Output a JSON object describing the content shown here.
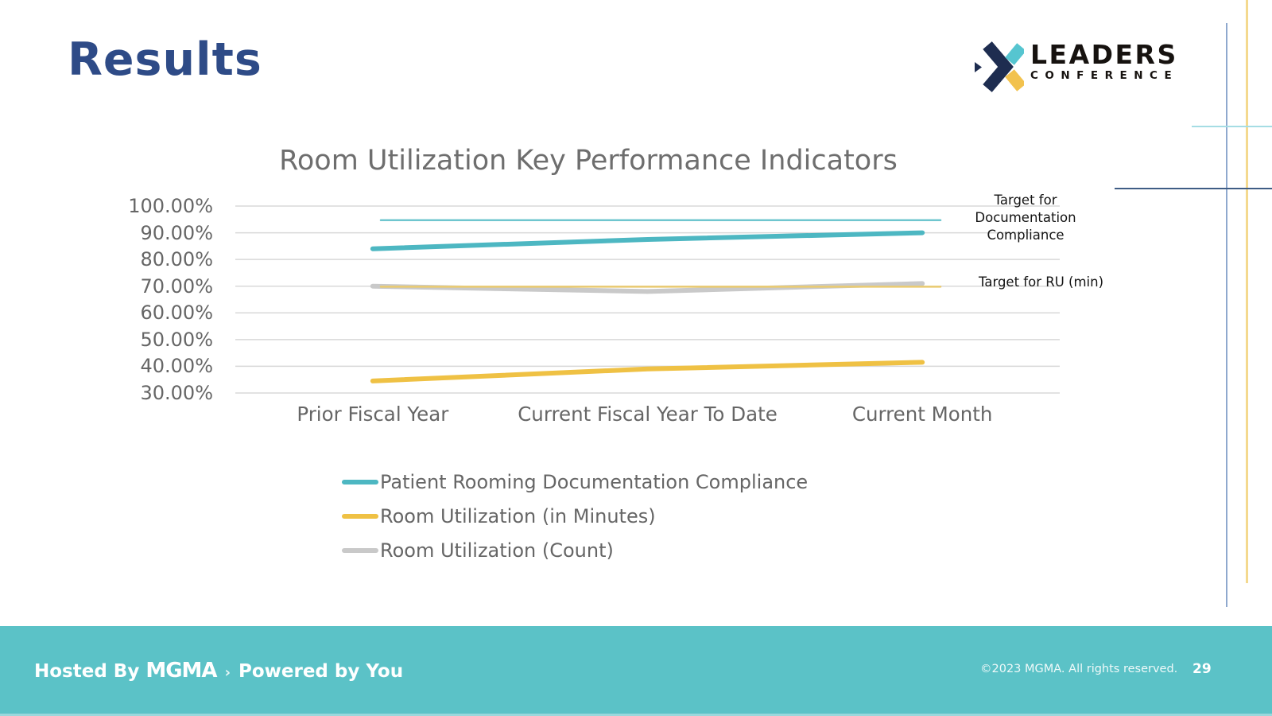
{
  "slide": {
    "title": "Results",
    "page_number": "29"
  },
  "logo": {
    "line1": "LEADERS",
    "line2": "CONFERENCE",
    "navy": "#1E2D50",
    "teal": "#56C5D0",
    "yellow": "#F2C24E"
  },
  "footer": {
    "hosted_prefix": "Hosted By",
    "brand": "MGMA",
    "separator": "›",
    "powered": "Powered by You",
    "copyright": "©2023 MGMA. All rights reserved.",
    "background": "#5BC2C7"
  },
  "colors": {
    "title_navy": "#2E4B87",
    "chart_text": "#666666",
    "gridline": "#D8D8D8",
    "accent_teal": "#4DB7C2",
    "accent_yellow": "#EFC144",
    "accent_gray": "#C9C9C9"
  },
  "chart_data": {
    "type": "line",
    "title": "Room Utilization Key Performance Indicators",
    "categories": [
      "Prior Fiscal Year",
      "Current Fiscal Year To Date",
      "Current Month"
    ],
    "y_ticks": [
      "100.00%",
      "90.00%",
      "80.00%",
      "70.00%",
      "60.00%",
      "50.00%",
      "40.00%",
      "30.00%"
    ],
    "ylim": [
      30,
      100
    ],
    "grid": true,
    "legend_position": "bottom-left",
    "series": [
      {
        "name": "Patient Rooming Documentation Compliance",
        "values": [
          84,
          87.5,
          90
        ],
        "color": "#4DB7C2",
        "width": 6,
        "in_legend": true,
        "span": "categories"
      },
      {
        "name": "Room Utilization (in Minutes)",
        "values": [
          34.5,
          39,
          41.5
        ],
        "color": "#EFC144",
        "width": 6,
        "in_legend": true,
        "span": "categories"
      },
      {
        "name": "Room Utilization (Count)",
        "values": [
          70,
          68,
          71
        ],
        "color": "#C9C9C9",
        "width": 6,
        "in_legend": true,
        "span": "categories"
      },
      {
        "name": "Target for Documentation Compliance",
        "values": [
          94.7,
          94.7,
          94.7
        ],
        "color": "#6FC6CF",
        "width": 2.5,
        "in_legend": false,
        "span": "targets"
      },
      {
        "name": "Target for RU (min)",
        "values": [
          69.8,
          69.8,
          69.8
        ],
        "color": "#EACB70",
        "width": 2.5,
        "in_legend": false,
        "span": "targets"
      }
    ],
    "annotations": [
      {
        "text": "Target for Documentation Compliance",
        "color": "#141414"
      },
      {
        "text": "Target for RU (min)",
        "color": "#141414"
      }
    ]
  }
}
